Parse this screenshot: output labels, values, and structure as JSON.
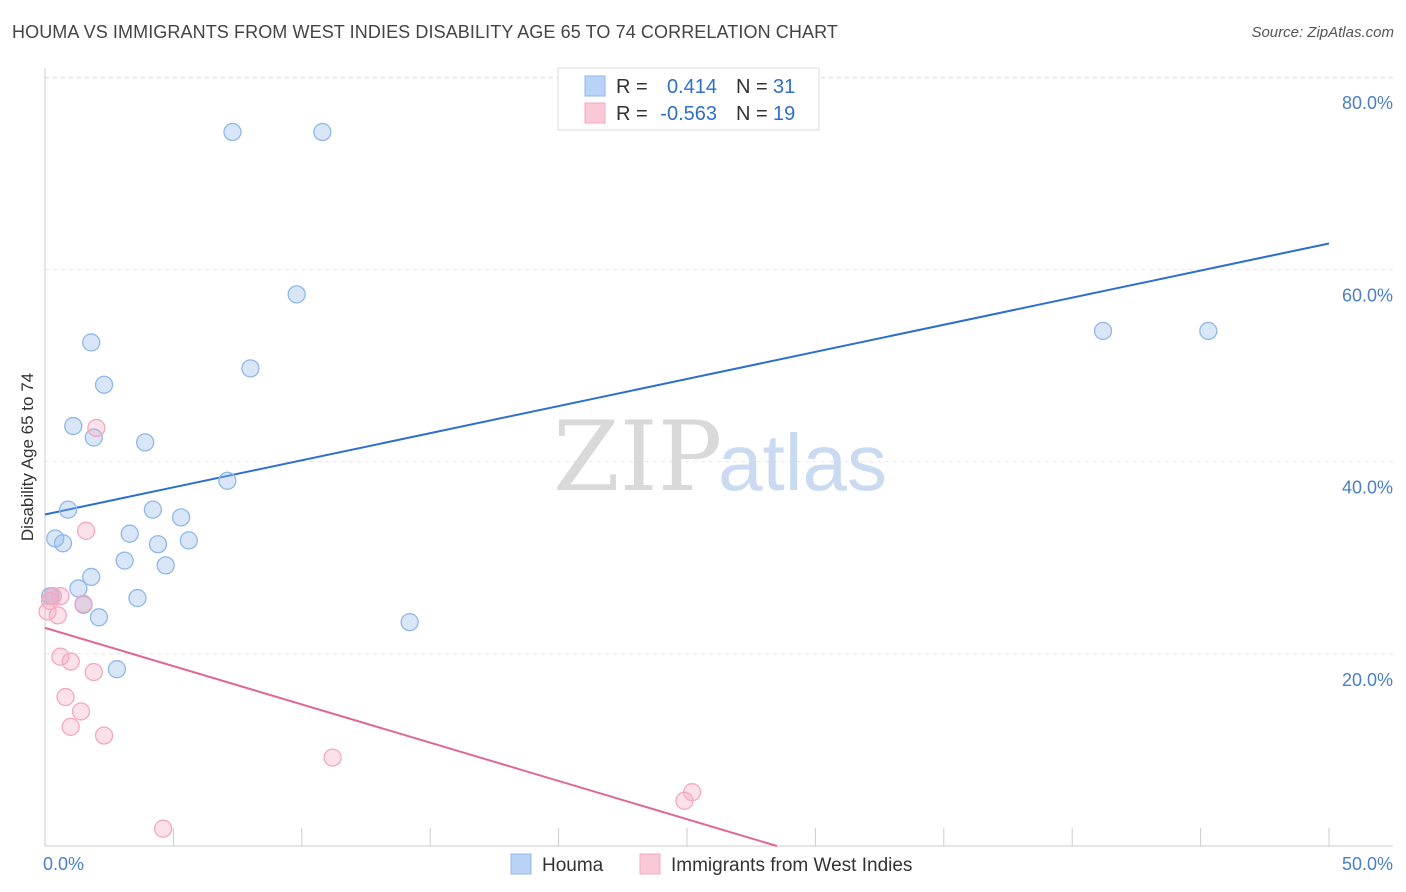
{
  "chart_data": {
    "type": "scatter",
    "title": "HOUMA VS IMMIGRANTS FROM WEST INDIES DISABILITY AGE 65 TO 74 CORRELATION CHART",
    "source": "Source: ZipAtlas.com",
    "xlabel": "",
    "ylabel": "Disability Age 65 to 74",
    "xlim": [
      0,
      50
    ],
    "ylim": [
      0,
      82
    ],
    "x_tick_labels": [
      "0.0%",
      "50.0%"
    ],
    "y_ticks": [
      20,
      40,
      60,
      80
    ],
    "y_tick_labels": [
      "20.0%",
      "40.0%",
      "60.0%",
      "80.0%"
    ],
    "watermark": {
      "zip": "ZIP",
      "atlas": "atlas"
    },
    "legend_stats": [
      {
        "r_label": "R =",
        "r_value": "0.414",
        "n_label": "N =",
        "n_value": "31"
      },
      {
        "r_label": "R =",
        "r_value": "-0.563",
        "n_label": "N =",
        "n_value": "19"
      }
    ],
    "series": [
      {
        "name": "Houma",
        "color": "#8fb8ea",
        "line_color": "#2e6fcc",
        "trend": [
          [
            0,
            34.5
          ],
          [
            50,
            62.7
          ]
        ],
        "points": [
          [
            7.3,
            74.3
          ],
          [
            10.8,
            74.3
          ],
          [
            9.8,
            57.4
          ],
          [
            1.8,
            52.4
          ],
          [
            8.0,
            49.7
          ],
          [
            2.3,
            48.0
          ],
          [
            41.2,
            53.6
          ],
          [
            45.3,
            53.6
          ],
          [
            1.1,
            43.7
          ],
          [
            1.9,
            42.5
          ],
          [
            3.9,
            42.0
          ],
          [
            7.1,
            38.0
          ],
          [
            0.9,
            35.0
          ],
          [
            4.2,
            35.0
          ],
          [
            5.3,
            34.2
          ],
          [
            3.3,
            32.5
          ],
          [
            5.6,
            31.8
          ],
          [
            0.4,
            32.0
          ],
          [
            0.7,
            31.5
          ],
          [
            4.4,
            31.4
          ],
          [
            3.1,
            29.7
          ],
          [
            4.7,
            29.2
          ],
          [
            1.8,
            28.0
          ],
          [
            1.3,
            26.8
          ],
          [
            0.2,
            26.0
          ],
          [
            3.6,
            25.8
          ],
          [
            1.5,
            25.1
          ],
          [
            2.1,
            23.8
          ],
          [
            14.2,
            23.3
          ],
          [
            2.8,
            18.4
          ],
          [
            0.3,
            26.0
          ]
        ]
      },
      {
        "name": "Immigrants from West Indies",
        "color": "#f4a8c0",
        "line_color": "#e0669a",
        "trend": [
          [
            0,
            22.7
          ],
          [
            28.5,
            0
          ]
        ],
        "points": [
          [
            0.2,
            25.5
          ],
          [
            0.3,
            26.0
          ],
          [
            0.1,
            24.4
          ],
          [
            0.5,
            24.0
          ],
          [
            0.6,
            26.0
          ],
          [
            1.5,
            25.2
          ],
          [
            2.0,
            43.5
          ],
          [
            1.6,
            32.8
          ],
          [
            0.6,
            19.7
          ],
          [
            1.0,
            19.2
          ],
          [
            1.9,
            18.1
          ],
          [
            0.8,
            15.5
          ],
          [
            1.4,
            14.0
          ],
          [
            1.0,
            12.4
          ],
          [
            2.3,
            11.5
          ],
          [
            11.2,
            9.2
          ],
          [
            25.2,
            5.6
          ],
          [
            24.9,
            4.7
          ],
          [
            4.6,
            1.8
          ]
        ]
      }
    ]
  }
}
